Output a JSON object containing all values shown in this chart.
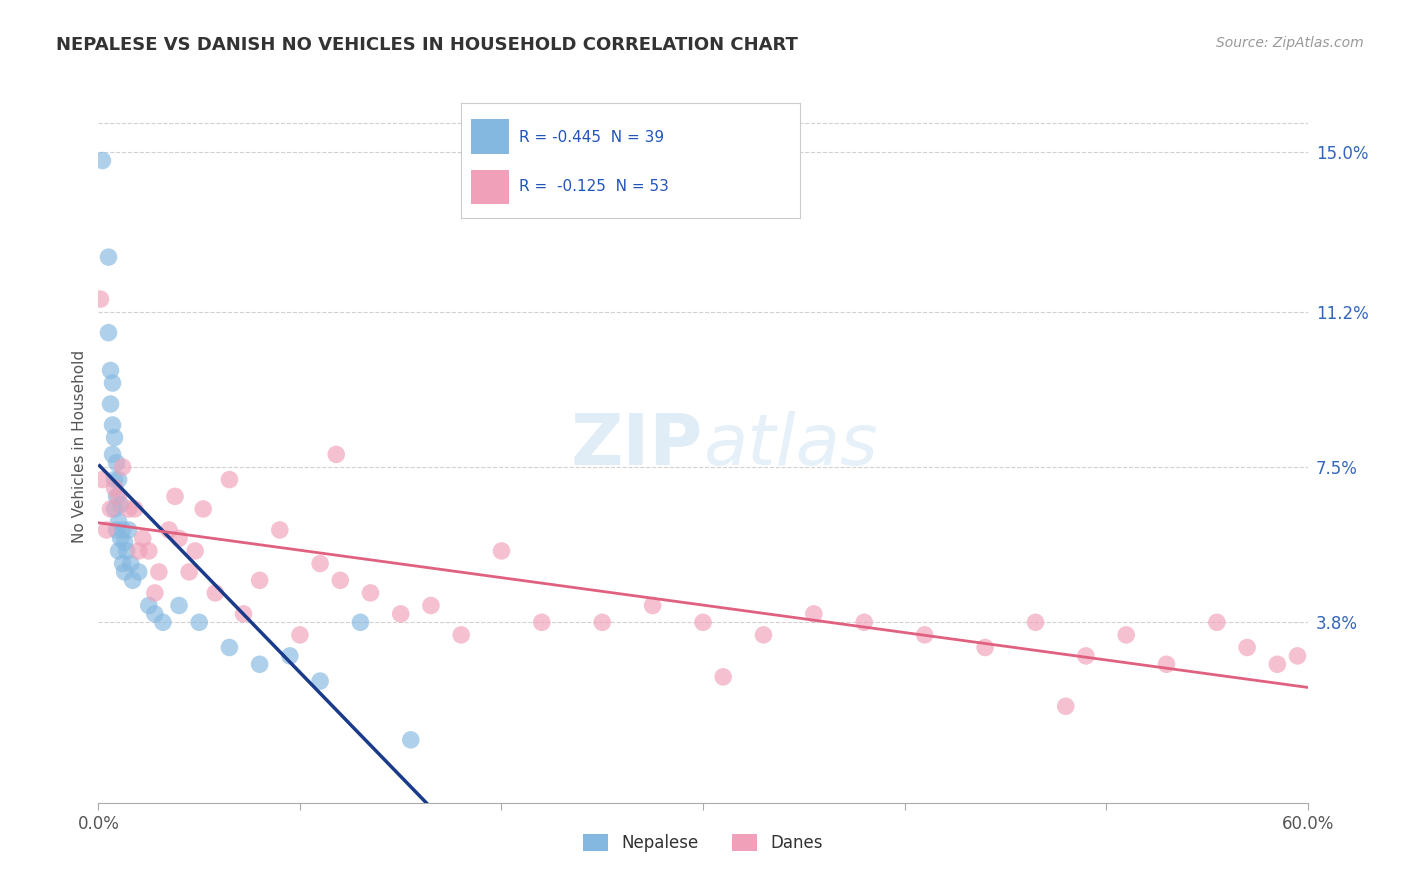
{
  "title": "NEPALESE VS DANISH NO VEHICLES IN HOUSEHOLD CORRELATION CHART",
  "source": "Source: ZipAtlas.com",
  "ylabel": "No Vehicles in Household",
  "y_tick_labels_right": [
    "15.0%",
    "11.2%",
    "7.5%",
    "3.8%"
  ],
  "y_tick_right_values": [
    0.15,
    0.112,
    0.075,
    0.038
  ],
  "nepalese_color": "#85b8e0",
  "danes_color": "#f0a0b8",
  "nepalese_line_color": "#1a3a8a",
  "danes_line_color": "#e06080",
  "background_color": "#ffffff",
  "watermark_zip": "ZIP",
  "watermark_atlas": "atlas",
  "xlim": [
    0.0,
    0.6
  ],
  "ylim": [
    -0.005,
    0.165
  ],
  "nepalese_x": [
    0.002,
    0.005,
    0.005,
    0.006,
    0.006,
    0.007,
    0.007,
    0.007,
    0.008,
    0.008,
    0.008,
    0.009,
    0.009,
    0.009,
    0.01,
    0.01,
    0.01,
    0.011,
    0.011,
    0.012,
    0.012,
    0.013,
    0.013,
    0.014,
    0.015,
    0.016,
    0.017,
    0.02,
    0.025,
    0.028,
    0.032,
    0.04,
    0.05,
    0.065,
    0.08,
    0.095,
    0.11,
    0.13,
    0.155
  ],
  "nepalese_y": [
    0.148,
    0.125,
    0.107,
    0.098,
    0.09,
    0.095,
    0.085,
    0.078,
    0.082,
    0.072,
    0.065,
    0.076,
    0.068,
    0.06,
    0.072,
    0.062,
    0.055,
    0.066,
    0.058,
    0.06,
    0.052,
    0.057,
    0.05,
    0.055,
    0.06,
    0.052,
    0.048,
    0.05,
    0.042,
    0.04,
    0.038,
    0.042,
    0.038,
    0.032,
    0.028,
    0.03,
    0.024,
    0.038,
    0.01
  ],
  "danes_x": [
    0.001,
    0.002,
    0.004,
    0.006,
    0.008,
    0.01,
    0.012,
    0.015,
    0.018,
    0.02,
    0.022,
    0.025,
    0.028,
    0.03,
    0.035,
    0.038,
    0.04,
    0.045,
    0.048,
    0.052,
    0.058,
    0.065,
    0.072,
    0.08,
    0.09,
    0.1,
    0.11,
    0.12,
    0.135,
    0.15,
    0.165,
    0.18,
    0.2,
    0.22,
    0.25,
    0.275,
    0.3,
    0.33,
    0.355,
    0.38,
    0.41,
    0.44,
    0.465,
    0.49,
    0.51,
    0.53,
    0.555,
    0.57,
    0.585,
    0.595,
    0.118,
    0.31,
    0.48
  ],
  "danes_y": [
    0.115,
    0.072,
    0.06,
    0.065,
    0.07,
    0.068,
    0.075,
    0.065,
    0.065,
    0.055,
    0.058,
    0.055,
    0.045,
    0.05,
    0.06,
    0.068,
    0.058,
    0.05,
    0.055,
    0.065,
    0.045,
    0.072,
    0.04,
    0.048,
    0.06,
    0.035,
    0.052,
    0.048,
    0.045,
    0.04,
    0.042,
    0.035,
    0.055,
    0.038,
    0.038,
    0.042,
    0.038,
    0.035,
    0.04,
    0.038,
    0.035,
    0.032,
    0.038,
    0.03,
    0.035,
    0.028,
    0.038,
    0.032,
    0.028,
    0.03,
    0.078,
    0.025,
    0.018
  ],
  "grid_color": "#cccccc",
  "title_color": "#333333",
  "axis_label_color": "#555555",
  "right_tick_color": "#3366bb",
  "legend_r1": "R = -0.445  N = 39",
  "legend_r2": "R =  -0.125  N = 53",
  "legend_color": "#2255bb"
}
